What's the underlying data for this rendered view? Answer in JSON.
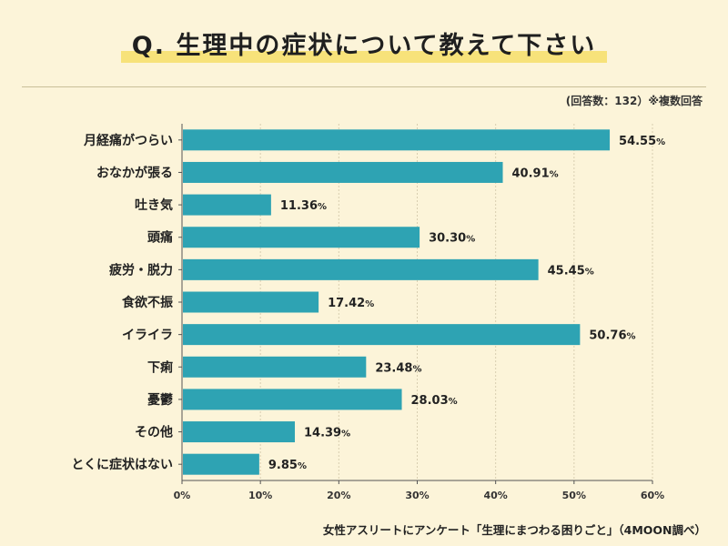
{
  "title": "Q. 生理中の症状について教えて下さい",
  "note": "(回答数：132）※複数回答",
  "caption": "女性アスリートにアンケート「生理にまつわる困りごと」（4MOON調べ）",
  "colors": {
    "bar": "#2ea3b3",
    "background": "#fcf4d9",
    "highlight": "#f7e27a"
  },
  "chart_data": {
    "type": "bar",
    "orientation": "horizontal",
    "title": "Q. 生理中の症状について教えて下さい",
    "xlabel": "",
    "ylabel": "",
    "categories": [
      "月経痛がつらい",
      "おなかが張る",
      "吐き気",
      "頭痛",
      "疲労・脱力",
      "食欲不振",
      "イライラ",
      "下痢",
      "憂鬱",
      "その他",
      "とくに症状はない"
    ],
    "values": [
      54.55,
      40.91,
      11.36,
      30.3,
      45.45,
      17.42,
      50.76,
      23.48,
      28.03,
      14.39,
      9.85
    ],
    "value_labels": [
      "54.55",
      "40.91",
      "11.36",
      "30.30",
      "45.45",
      "17.42",
      "50.76",
      "23.48",
      "28.03",
      "14.39",
      "9.85"
    ],
    "value_suffix": "%",
    "xlim": [
      0,
      60
    ],
    "ticks": [
      0,
      10,
      20,
      30,
      40,
      50,
      60
    ],
    "tick_labels": [
      "0%",
      "10%",
      "20%",
      "30%",
      "40%",
      "50%",
      "60%"
    ],
    "grid": true
  }
}
